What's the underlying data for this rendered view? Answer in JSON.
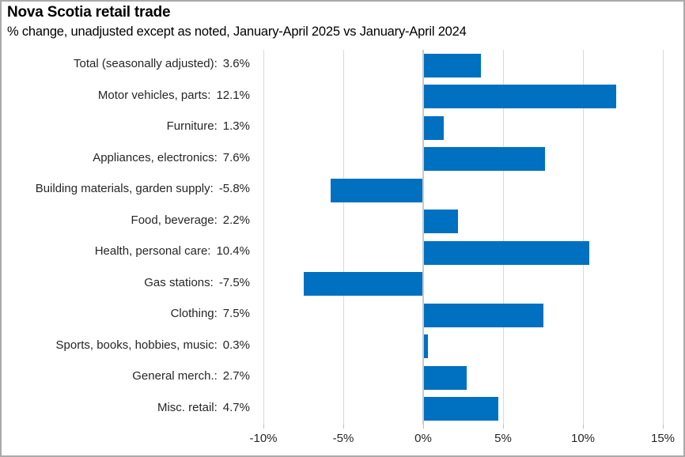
{
  "title": "Nova Scotia retail trade",
  "subtitle": "% change, unadjusted except as noted, January-April 2025 vs January-April 2024",
  "chart_data": {
    "type": "bar",
    "orientation": "horizontal",
    "title": "Nova Scotia retail trade",
    "subtitle": "% change, unadjusted except as noted, January-April 2025 vs January-April 2024",
    "categories": [
      "Total (seasonally adjusted)",
      "Motor vehicles, parts",
      "Furniture",
      "Appliances, electronics",
      "Building materials, garden supply",
      "Food, beverage",
      "Health, personal care",
      "Gas stations",
      "Clothing",
      "Sports, books, hobbies, music",
      "General merch.",
      "Misc. retail"
    ],
    "category_display_labels": [
      "Total (seasonally adjusted):",
      "Motor vehicles, parts:",
      "Furniture:",
      "Appliances, electronics:",
      "Building materials, garden supply:",
      "Food, beverage:",
      "Health, personal care:",
      "Gas stations:",
      "Clothing:",
      "Sports, books, hobbies, music:",
      "General merch.:",
      "Misc. retail:"
    ],
    "values": [
      3.6,
      12.1,
      1.3,
      7.6,
      -5.8,
      2.2,
      10.4,
      -7.5,
      7.5,
      0.3,
      2.7,
      4.7
    ],
    "value_labels": [
      "3.6%",
      "12.1%",
      "1.3%",
      "7.6%",
      "-5.8%",
      "2.2%",
      "10.4%",
      "-7.5%",
      "7.5%",
      "0.3%",
      "2.7%",
      "4.7%"
    ],
    "xlabel": "",
    "ylabel": "",
    "xlim": [
      -10,
      15
    ],
    "xtick_values": [
      -10,
      -5,
      0,
      5,
      10,
      15
    ],
    "xtick_labels": [
      "-10%",
      "-5%",
      "0%",
      "5%",
      "10%",
      "15%"
    ],
    "grid": true,
    "legend": false,
    "colors": {
      "bar": "#0070C0",
      "gridline": "#D9D9D9",
      "zero_line": "#C9C9C9",
      "tick": "#BFBFBF",
      "label_text": "#262626",
      "title_text": "#000000",
      "frame_border": "#ABABAB",
      "background": "#FFFFFF"
    }
  }
}
